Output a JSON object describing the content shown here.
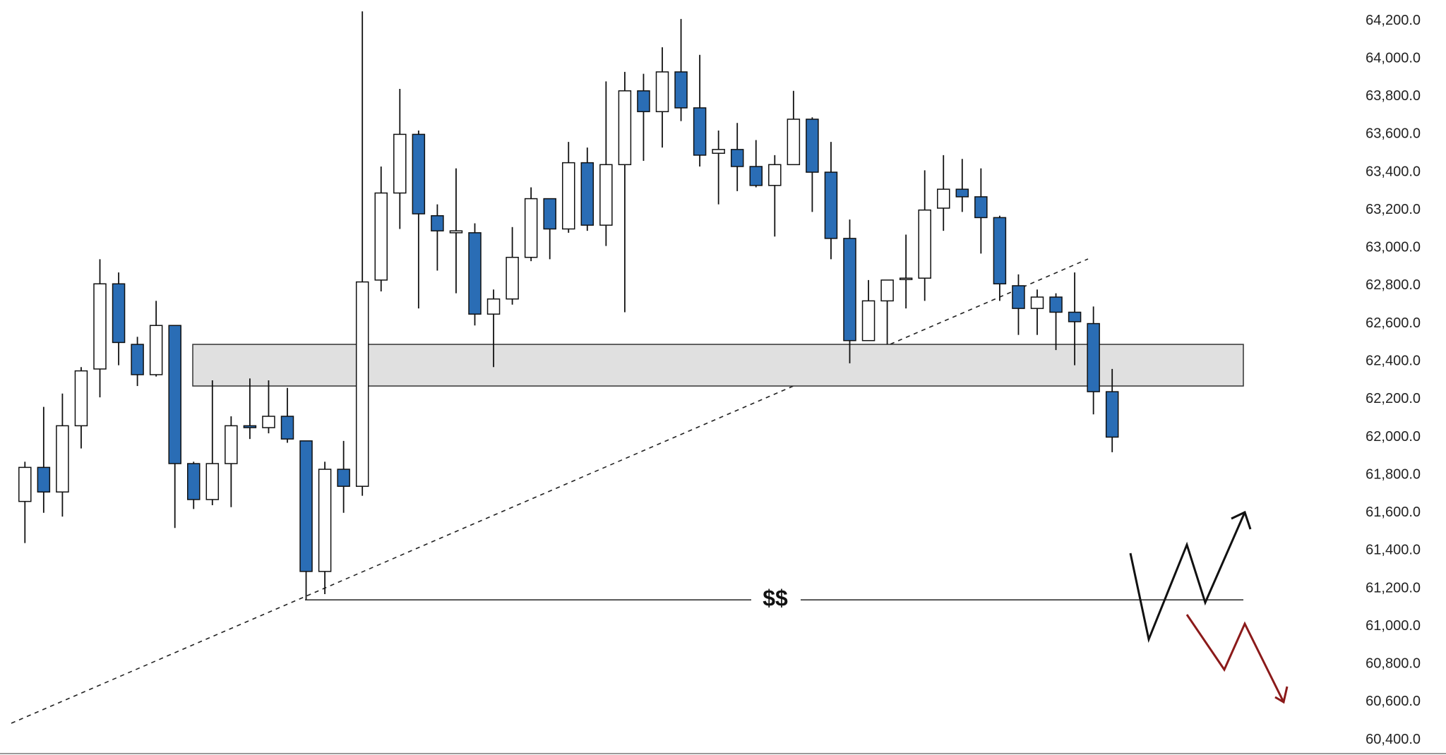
{
  "chart_data": {
    "type": "candlestick",
    "up_color": "#ffffff",
    "down_color": "#2a6db5",
    "open": [
      61660,
      61840,
      61710,
      62060,
      62360,
      62810,
      62490,
      62330,
      62590,
      61860,
      61670,
      61860,
      62060,
      62050,
      62110,
      61980,
      61290,
      61830,
      61740,
      62830,
      63290,
      63600,
      63170,
      63080,
      63080,
      62650,
      62730,
      62950,
      63260,
      63100,
      63450,
      63120,
      63440,
      63830,
      63720,
      63930,
      63740,
      63500,
      63520,
      63430,
      63330,
      63440,
      63680,
      63400,
      63050,
      62510,
      62720,
      62840,
      62840,
      63210,
      63310,
      63270,
      63160,
      62800,
      62680,
      62740,
      62660,
      62600,
      62240
    ],
    "high": [
      61870,
      62160,
      62230,
      62370,
      62940,
      62870,
      62530,
      62720,
      62590,
      61870,
      62300,
      62110,
      62310,
      62300,
      62260,
      61980,
      61870,
      61980,
      64250,
      63430,
      63840,
      63620,
      63230,
      63420,
      63130,
      62780,
      63110,
      63320,
      63260,
      63560,
      63530,
      63880,
      63930,
      63920,
      64060,
      64210,
      64020,
      63620,
      63660,
      63570,
      63490,
      63830,
      63690,
      63560,
      63150,
      62830,
      62830,
      63070,
      63410,
      63490,
      63470,
      63420,
      63170,
      62860,
      62780,
      62760,
      62870,
      62690,
      62360
    ],
    "low": [
      61440,
      61600,
      61580,
      61940,
      62210,
      62380,
      62270,
      62320,
      61520,
      61620,
      61640,
      61630,
      61990,
      62020,
      61970,
      61140,
      61170,
      61600,
      61690,
      62770,
      63100,
      62680,
      62880,
      62760,
      62590,
      62370,
      62700,
      62930,
      62940,
      63080,
      63090,
      63010,
      62660,
      63460,
      63530,
      63670,
      63430,
      63230,
      63300,
      63320,
      63060,
      63440,
      63190,
      62940,
      62390,
      62510,
      62490,
      62680,
      62720,
      63090,
      63190,
      62970,
      62720,
      62540,
      62540,
      62460,
      62380,
      62120,
      61920
    ],
    "close": [
      61840,
      61710,
      62060,
      62350,
      62810,
      62500,
      62330,
      62590,
      61860,
      61670,
      61860,
      62060,
      62050,
      62110,
      61990,
      61290,
      61830,
      61740,
      62820,
      63290,
      63600,
      63180,
      63090,
      63090,
      62650,
      62730,
      62950,
      63260,
      63100,
      63450,
      63120,
      63440,
      63830,
      63720,
      63930,
      63740,
      63490,
      63520,
      63430,
      63330,
      63440,
      63680,
      63400,
      63050,
      62510,
      62720,
      62830,
      62840,
      63200,
      63310,
      63270,
      63160,
      62810,
      62680,
      62740,
      62660,
      62610,
      62240,
      62000
    ],
    "zone": [
      62270,
      62490
    ],
    "level": {
      "label": "$$",
      "value": 61140
    },
    "ylim": [
      60320,
      64310
    ],
    "yticks": [
      {
        "value": 64200,
        "label": "64,200.0"
      },
      {
        "value": 64000,
        "label": "64,000.0"
      },
      {
        "value": 63800,
        "label": "63,800.0"
      },
      {
        "value": 63600,
        "label": "63,600.0"
      },
      {
        "value": 63400,
        "label": "63,400.0"
      },
      {
        "value": 63200,
        "label": "63,200.0"
      },
      {
        "value": 63000,
        "label": "63,000.0"
      },
      {
        "value": 62800,
        "label": "62,800.0"
      },
      {
        "value": 62600,
        "label": "62,600.0"
      },
      {
        "value": 62400,
        "label": "62,400.0"
      },
      {
        "value": 62200,
        "label": "62,200.0"
      },
      {
        "value": 62000,
        "label": "62,000.0"
      },
      {
        "value": 61800,
        "label": "61,800.0"
      },
      {
        "value": 61600,
        "label": "61,600.0"
      },
      {
        "value": 61400,
        "label": "61,400.0"
      },
      {
        "value": 61200,
        "label": "61,200.0"
      },
      {
        "value": 61000,
        "label": "61,000.0"
      },
      {
        "value": 60800,
        "label": "60,800.0"
      },
      {
        "value": 60600,
        "label": "60,600.0"
      },
      {
        "value": 60400,
        "label": "60,400.0"
      }
    ]
  }
}
